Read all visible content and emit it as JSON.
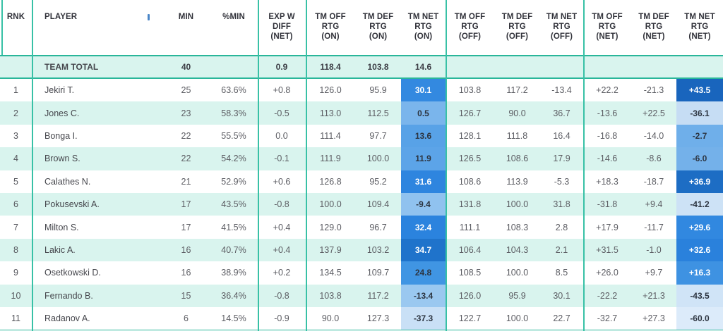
{
  "accent": {
    "teal_border": "#2ab69a",
    "teal_line": "#38c1a6",
    "mint_row_bg": "#d9f4ee",
    "sort_indicator_blue": "#4a86c8"
  },
  "header": {
    "columns": [
      {
        "label": "RNK"
      },
      {
        "label": "PLAYER"
      },
      {
        "label": "MIN"
      },
      {
        "label": "%MIN"
      },
      {
        "label": "EXP W\nDIFF\n(NET)"
      },
      {
        "label": "TM OFF\nRTG\n(ON)"
      },
      {
        "label": "TM DEF\nRTG\n(ON)"
      },
      {
        "label": "TM NET\nRTG\n(ON)"
      },
      {
        "label": "TM OFF\nRTG\n(OFF)"
      },
      {
        "label": "TM DEF\nRTG\n(OFF)"
      },
      {
        "label": "TM NET\nRTG\n(OFF)"
      },
      {
        "label": "TM OFF\nRTG\n(NET)"
      },
      {
        "label": "TM DEF\nRTG\n(NET)"
      },
      {
        "label": "TM NET\nRTG\n(NET)"
      }
    ]
  },
  "team_total": {
    "label": "TEAM TOTAL",
    "min": "40",
    "exp_w_diff": "0.9",
    "off_on": "118.4",
    "def_on": "103.8",
    "net_on": "14.6"
  },
  "rows": [
    {
      "rank": "1",
      "player": "Jekiri T.",
      "min": "25",
      "pct_min": "63.6%",
      "exp_w_diff": "+0.8",
      "off_on": "126.0",
      "def_on": "95.9",
      "net_on": "30.1",
      "net_on_bg": "#3389e0",
      "net_on_fg": "#ffffff",
      "off_off": "103.8",
      "def_off": "117.2",
      "net_off": "-13.4",
      "off_net": "+22.2",
      "def_net": "-21.3",
      "net_net": "+43.5",
      "net_net_bg": "#1965bd",
      "net_net_fg": "#ffffff"
    },
    {
      "rank": "2",
      "player": "Jones C.",
      "min": "23",
      "pct_min": "58.3%",
      "exp_w_diff": "-0.5",
      "off_on": "113.0",
      "def_on": "112.5",
      "net_on": "0.5",
      "net_on_bg": "#7ab5ec",
      "net_on_fg": "#2c3440",
      "off_off": "126.7",
      "def_off": "90.0",
      "net_off": "36.7",
      "off_net": "-13.6",
      "def_net": "+22.5",
      "net_net": "-36.1",
      "net_net_bg": "#c6ddf4",
      "net_net_fg": "#2c3440"
    },
    {
      "rank": "3",
      "player": "Bonga I.",
      "min": "22",
      "pct_min": "55.5%",
      "exp_w_diff": "0.0",
      "off_on": "111.4",
      "def_on": "97.7",
      "net_on": "13.6",
      "net_on_bg": "#58a2e7",
      "net_on_fg": "#2c3440",
      "off_off": "128.1",
      "def_off": "111.8",
      "net_off": "16.4",
      "off_net": "-16.8",
      "def_net": "-14.0",
      "net_net": "-2.7",
      "net_net_bg": "#6fafea",
      "net_net_fg": "#2c3440"
    },
    {
      "rank": "4",
      "player": "Brown S.",
      "min": "22",
      "pct_min": "54.2%",
      "exp_w_diff": "-0.1",
      "off_on": "111.9",
      "def_on": "100.0",
      "net_on": "11.9",
      "net_on_bg": "#5ca4e8",
      "net_on_fg": "#2c3440",
      "off_off": "126.5",
      "def_off": "108.6",
      "net_off": "17.9",
      "off_net": "-14.6",
      "def_net": "-8.6",
      "net_net": "-6.0",
      "net_net_bg": "#74b1ea",
      "net_net_fg": "#2c3440"
    },
    {
      "rank": "5",
      "player": "Calathes N.",
      "min": "21",
      "pct_min": "52.9%",
      "exp_w_diff": "+0.6",
      "off_on": "126.8",
      "def_on": "95.2",
      "net_on": "31.6",
      "net_on_bg": "#2e85df",
      "net_on_fg": "#ffffff",
      "off_off": "108.6",
      "def_off": "113.9",
      "net_off": "-5.3",
      "off_net": "+18.3",
      "def_net": "-18.7",
      "net_net": "+36.9",
      "net_net_bg": "#1d6dc4",
      "net_net_fg": "#ffffff"
    },
    {
      "rank": "6",
      "player": "Pokusevski A.",
      "min": "17",
      "pct_min": "43.5%",
      "exp_w_diff": "-0.8",
      "off_on": "100.0",
      "def_on": "109.4",
      "net_on": "-9.4",
      "net_on_bg": "#90c2ef",
      "net_on_fg": "#2c3440",
      "off_off": "131.8",
      "def_off": "100.0",
      "net_off": "31.8",
      "off_net": "-31.8",
      "def_net": "+9.4",
      "net_net": "-41.2",
      "net_net_bg": "#cde2f6",
      "net_net_fg": "#2c3440"
    },
    {
      "rank": "7",
      "player": "Milton S.",
      "min": "17",
      "pct_min": "41.5%",
      "exp_w_diff": "+0.4",
      "off_on": "129.0",
      "def_on": "96.7",
      "net_on": "32.4",
      "net_on_bg": "#2b83de",
      "net_on_fg": "#ffffff",
      "off_off": "111.1",
      "def_off": "108.3",
      "net_off": "2.8",
      "off_net": "+17.9",
      "def_net": "-11.7",
      "net_net": "+29.6",
      "net_net_bg": "#3188e0",
      "net_net_fg": "#ffffff"
    },
    {
      "rank": "8",
      "player": "Lakic A.",
      "min": "16",
      "pct_min": "40.7%",
      "exp_w_diff": "+0.4",
      "off_on": "137.9",
      "def_on": "103.2",
      "net_on": "34.7",
      "net_on_bg": "#1f73cb",
      "net_on_fg": "#ffffff",
      "off_off": "106.4",
      "def_off": "104.3",
      "net_off": "2.1",
      "off_net": "+31.5",
      "def_net": "-1.0",
      "net_net": "+32.6",
      "net_net_bg": "#2a81dc",
      "net_net_fg": "#ffffff"
    },
    {
      "rank": "9",
      "player": "Osetkowski D.",
      "min": "16",
      "pct_min": "38.9%",
      "exp_w_diff": "+0.2",
      "off_on": "134.5",
      "def_on": "109.7",
      "net_on": "24.8",
      "net_on_bg": "#4095e3",
      "net_on_fg": "#2c3440",
      "off_off": "108.5",
      "def_off": "100.0",
      "net_off": "8.5",
      "off_net": "+26.0",
      "def_net": "+9.7",
      "net_net": "+16.3",
      "net_net_bg": "#3e92e2",
      "net_net_fg": "#ffffff"
    },
    {
      "rank": "10",
      "player": "Fernando B.",
      "min": "15",
      "pct_min": "36.4%",
      "exp_w_diff": "-0.8",
      "off_on": "103.8",
      "def_on": "117.2",
      "net_on": "-13.4",
      "net_on_bg": "#9ac8f0",
      "net_on_fg": "#2c3440",
      "off_off": "126.0",
      "def_off": "95.9",
      "net_off": "30.1",
      "off_net": "-22.2",
      "def_net": "+21.3",
      "net_net": "-43.5",
      "net_net_bg": "#d0e4f7",
      "net_net_fg": "#2c3440"
    },
    {
      "rank": "11",
      "player": "Radanov A.",
      "min": "6",
      "pct_min": "14.5%",
      "exp_w_diff": "-0.9",
      "off_on": "90.0",
      "def_on": "127.3",
      "net_on": "-37.3",
      "net_on_bg": "#c9e0f6",
      "net_on_fg": "#2c3440",
      "off_off": "122.7",
      "def_off": "100.0",
      "net_off": "22.7",
      "off_net": "-32.7",
      "def_net": "+27.3",
      "net_net": "-60.0",
      "net_net_bg": "#dcebfa",
      "net_net_fg": "#2c3440"
    }
  ]
}
